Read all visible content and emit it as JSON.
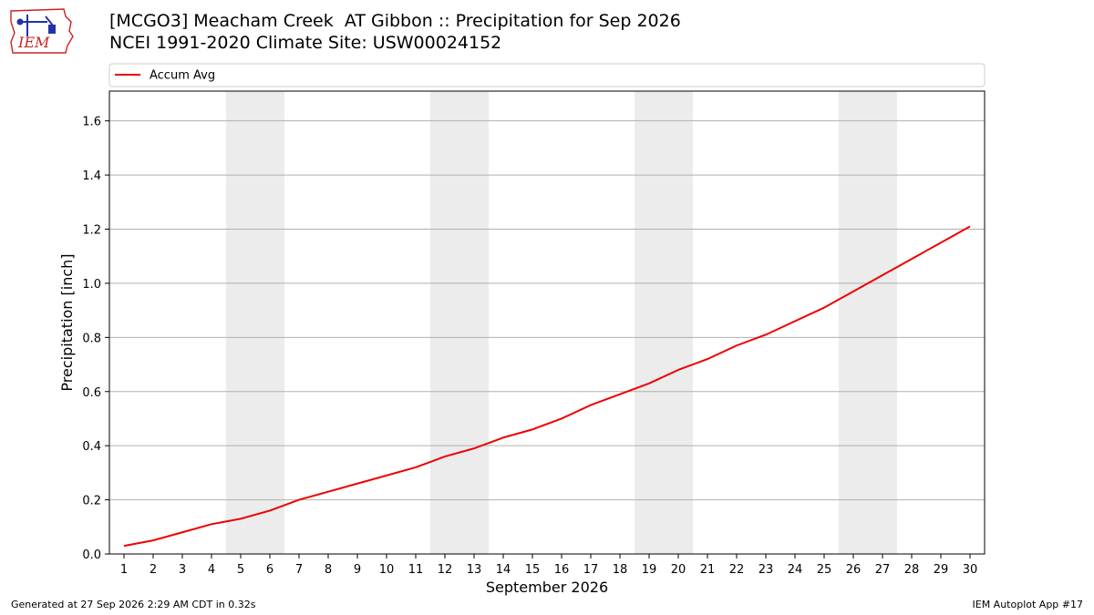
{
  "logo": {
    "text": "IEM"
  },
  "header": {
    "title_line1": "[MCGO3] Meacham Creek  AT Gibbon :: Precipitation for Sep 2026",
    "title_line2": "NCEI 1991-2020 Climate Site: USW00024152"
  },
  "footer": {
    "generated": "Generated at 27 Sep 2026 2:29 AM CDT in 0.32s",
    "app": "IEM Autoplot App #17"
  },
  "colors": {
    "line": "#ee0000",
    "weekend_band": "#ececec",
    "grid": "#b0b0b0"
  },
  "chart_data": {
    "type": "line",
    "xlabel": "September 2026",
    "ylabel": "Precipitation [inch]",
    "ylim": [
      0,
      1.71
    ],
    "yticks": [
      0.0,
      0.2,
      0.4,
      0.6,
      0.8,
      1.0,
      1.2,
      1.4,
      1.6
    ],
    "ytick_labels": [
      "0.0",
      "0.2",
      "0.4",
      "0.6",
      "0.8",
      "1.0",
      "1.2",
      "1.4",
      "1.6"
    ],
    "xlim": [
      0.5,
      30.5
    ],
    "xticks": [
      1,
      2,
      3,
      4,
      5,
      6,
      7,
      8,
      9,
      10,
      11,
      12,
      13,
      14,
      15,
      16,
      17,
      18,
      19,
      20,
      21,
      22,
      23,
      24,
      25,
      26,
      27,
      28,
      29,
      30
    ],
    "xtick_labels": [
      "1",
      "2",
      "3",
      "4",
      "5",
      "6",
      "7",
      "8",
      "9",
      "10",
      "11",
      "12",
      "13",
      "14",
      "15",
      "16",
      "17",
      "18",
      "19",
      "20",
      "21",
      "22",
      "23",
      "24",
      "25",
      "26",
      "27",
      "28",
      "29",
      "30"
    ],
    "shaded_days": [
      [
        5,
        6
      ],
      [
        12,
        13
      ],
      [
        19,
        20
      ],
      [
        26,
        27
      ]
    ],
    "grid": "horizontal",
    "legend": {
      "placement": "top-left",
      "entries": [
        "Accum Avg"
      ]
    },
    "series": [
      {
        "name": "Accum Avg",
        "x": [
          1,
          2,
          3,
          4,
          5,
          6,
          7,
          8,
          9,
          10,
          11,
          12,
          13,
          14,
          15,
          16,
          17,
          18,
          19,
          20,
          21,
          22,
          23,
          24,
          25,
          26,
          27,
          28,
          29,
          30
        ],
        "values": [
          0.03,
          0.05,
          0.08,
          0.11,
          0.13,
          0.16,
          0.2,
          0.23,
          0.26,
          0.29,
          0.32,
          0.36,
          0.39,
          0.43,
          0.46,
          0.5,
          0.55,
          0.59,
          0.63,
          0.68,
          0.72,
          0.77,
          0.81,
          0.86,
          0.91,
          0.97,
          1.03,
          1.09,
          1.15,
          1.21
        ]
      }
    ]
  }
}
